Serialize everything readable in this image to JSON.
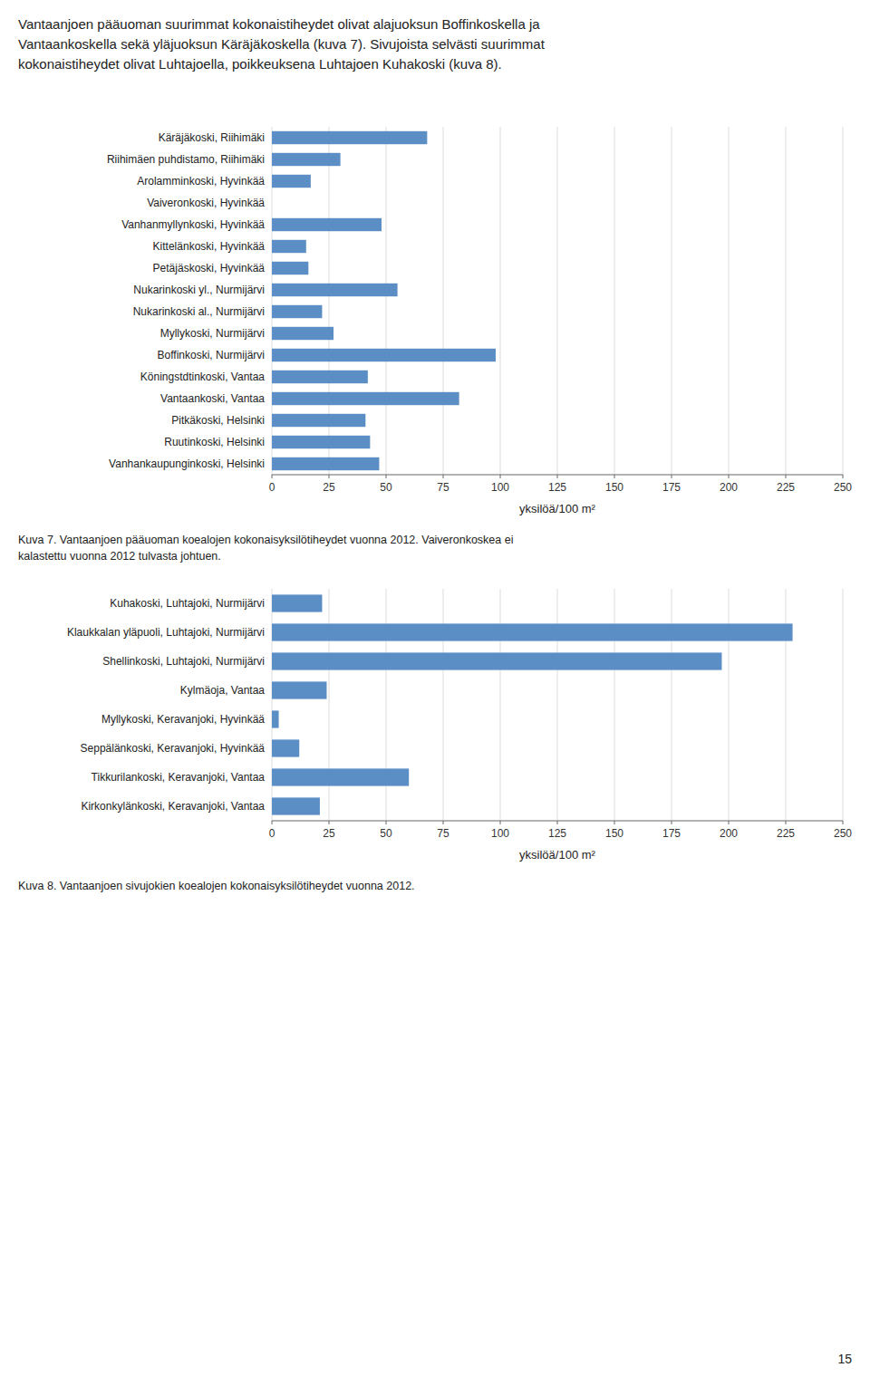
{
  "header_text": "Vantaanjoen pääuoman suurimmat kokonaistiheydet olivat alajuoksun Boffinkoskella ja\nVantaankoskella sekä yläjuoksun Käräjäkoskella (kuva 7). Sivujoista selvästi suurimmat\nkokonaistiheydet olivat Luhtajoella, poikkeuksena Luhtajoen Kuhakoski (kuva 8).",
  "footer_text": "15",
  "chart_data": [
    {
      "type": "bar",
      "orientation": "horizontal",
      "title": "Kuva 7. Vantaanjoen pääuoman koealojen kokonaisyksilötiheydet vuonna 2012. Vaiveronkoskea ei\nkalastettu vuonna 2012 tulvasta johtuen.",
      "categories": [
        "Käräjäkoski, Riihimäki",
        "Riihimäen puhdistamo, Riihimäki",
        "Arolamminkoski, Hyvinkää",
        "Vaiveronkoski, Hyvinkää",
        "Vanhanmyllynkoski, Hyvinkää",
        "Kittelänkoski, Hyvinkää",
        "Petäjäskoski, Hyvinkää",
        "Nukarinkoski yl., Nurmijärvi",
        "Nukarinkoski al., Nurmijärvi",
        "Myllykoski, Nurmijärvi",
        "Boffinkoski, Nurmijärvi",
        "Köningstdtinkoski, Vantaa",
        "Vantaankoski, Vantaa",
        "Pitkäkoski, Helsinki",
        "Ruutinkoski, Helsinki",
        "Vanhankaupunginkoski, Helsinki"
      ],
      "values": [
        68,
        30,
        17,
        0,
        48,
        15,
        16,
        55,
        22,
        27,
        98,
        42,
        82,
        41,
        43,
        47
      ],
      "color": "#5b8ec4",
      "xlabel": "yksilöä/100 m²",
      "xlim": [
        0,
        250
      ],
      "xticks": [
        0,
        25,
        50,
        75,
        100,
        125,
        150,
        175,
        200,
        225,
        250
      ],
      "grid": true
    },
    {
      "type": "bar",
      "orientation": "horizontal",
      "title": "Kuva 8. Vantaanjoen sivujokien koealojen kokonaisyksilötiheydet vuonna 2012.",
      "categories": [
        "Kuhakoski, Luhtajoki, Nurmijärvi",
        "Klaukkalan yläpuoli, Luhtajoki, Nurmijärvi",
        "Shellinkoski, Luhtajoki, Nurmijärvi",
        "Kylmäoja, Vantaa",
        "Myllykoski, Keravanjoki, Hyvinkää",
        "Seppälänkoski, Keravanjoki, Hyvinkää",
        "Tikkurilankoski, Keravanjoki, Vantaa",
        "Kirkonkylänkoski, Keravanjoki, Vantaa"
      ],
      "values": [
        22,
        228,
        197,
        24,
        3,
        12,
        60,
        21
      ],
      "color": "#5b8ec4",
      "xlabel": "yksilöä/100 m²",
      "xlim": [
        0,
        250
      ],
      "xticks": [
        0,
        25,
        50,
        75,
        100,
        125,
        150,
        175,
        200,
        225,
        250
      ],
      "grid": true
    }
  ]
}
